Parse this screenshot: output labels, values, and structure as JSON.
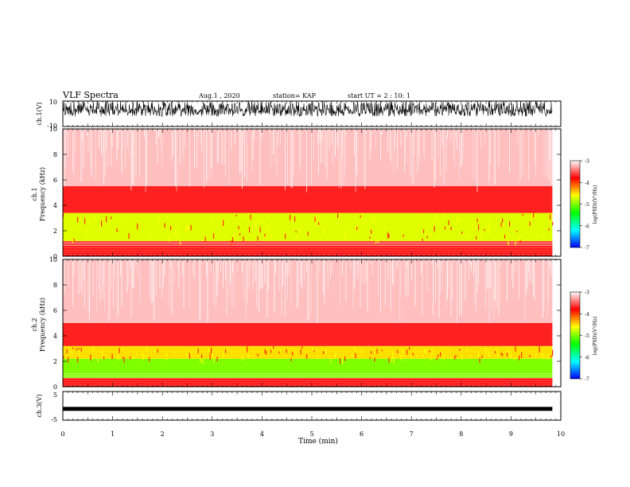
{
  "header": {
    "title": "VLF Spectra",
    "date": "Aug.1 , 2020",
    "station": "station= KAP",
    "start": "start UT = 2 : 10: 1"
  },
  "chart_data": [
    {
      "type": "line",
      "ylabel": "ch.1(V)",
      "ylim": [
        -10,
        10
      ],
      "yticks": [
        "10",
        "-10"
      ],
      "xlim": [
        0,
        10
      ],
      "description_of_data": "dense noisy waveform, mostly between about -2 and 10 V"
    },
    {
      "type": "heatmap",
      "ylabel": "ch.1\nFrequency (kHz)",
      "ylabel_line1": "ch.1",
      "ylabel_line2": "Frequency (kHz)",
      "ylim": [
        0,
        10
      ],
      "yticks": [
        "0",
        "2",
        "4",
        "6",
        "8",
        "10"
      ],
      "xlim": [
        0,
        10
      ],
      "bands": [
        {
          "from_khz": 0.0,
          "to_khz": 0.8,
          "level": -3.8
        },
        {
          "from_khz": 0.8,
          "to_khz": 1.2,
          "level": -3.6
        },
        {
          "from_khz": 1.2,
          "to_khz": 3.4,
          "level": -4.7
        },
        {
          "from_khz": 3.4,
          "to_khz": 5.5,
          "level": -3.7
        },
        {
          "from_khz": 5.5,
          "to_khz": 10.0,
          "level": -3.2
        }
      ],
      "colorbar": {
        "label": "log(PSD)(V²/Hz)",
        "range": [
          -7,
          -3
        ],
        "ticks": [
          "-3",
          "-4",
          "-5",
          "-6",
          "-7"
        ]
      }
    },
    {
      "type": "heatmap",
      "ylabel_line1": "ch.2",
      "ylabel_line2": "Frequency (kHz)",
      "ylim": [
        0,
        10
      ],
      "yticks": [
        "0",
        "2",
        "4",
        "6",
        "8",
        "10"
      ],
      "xlim": [
        0,
        10
      ],
      "bands": [
        {
          "from_khz": 0.0,
          "to_khz": 0.7,
          "level": -3.8
        },
        {
          "from_khz": 0.7,
          "to_khz": 2.2,
          "level": -5.0
        },
        {
          "from_khz": 2.2,
          "to_khz": 3.2,
          "level": -4.5
        },
        {
          "from_khz": 3.2,
          "to_khz": 5.0,
          "level": -3.7
        },
        {
          "from_khz": 5.0,
          "to_khz": 10.0,
          "level": -3.2
        }
      ],
      "colorbar": {
        "label": "log(PSD)(V²/Hz)",
        "range": [
          -7,
          -3
        ],
        "ticks": [
          "-3",
          "-4",
          "-5",
          "-6",
          "-7"
        ]
      }
    },
    {
      "type": "line",
      "ylabel": "ch.3(V)",
      "ylim": [
        -5,
        5
      ],
      "yticks": [
        "5",
        "-5"
      ],
      "xlim": [
        0,
        10
      ],
      "level": -1.2
    }
  ],
  "xaxis": {
    "label": "Time (min)",
    "ticks": [
      "0",
      "1",
      "2",
      "3",
      "4",
      "5",
      "6",
      "7",
      "8",
      "9",
      "10"
    ],
    "range": [
      0,
      10
    ],
    "data_end": 9.83
  },
  "colormap": [
    "#0000ff",
    "#00ffff",
    "#00ff00",
    "#ffff00",
    "#ff0000",
    "#ffffff"
  ]
}
